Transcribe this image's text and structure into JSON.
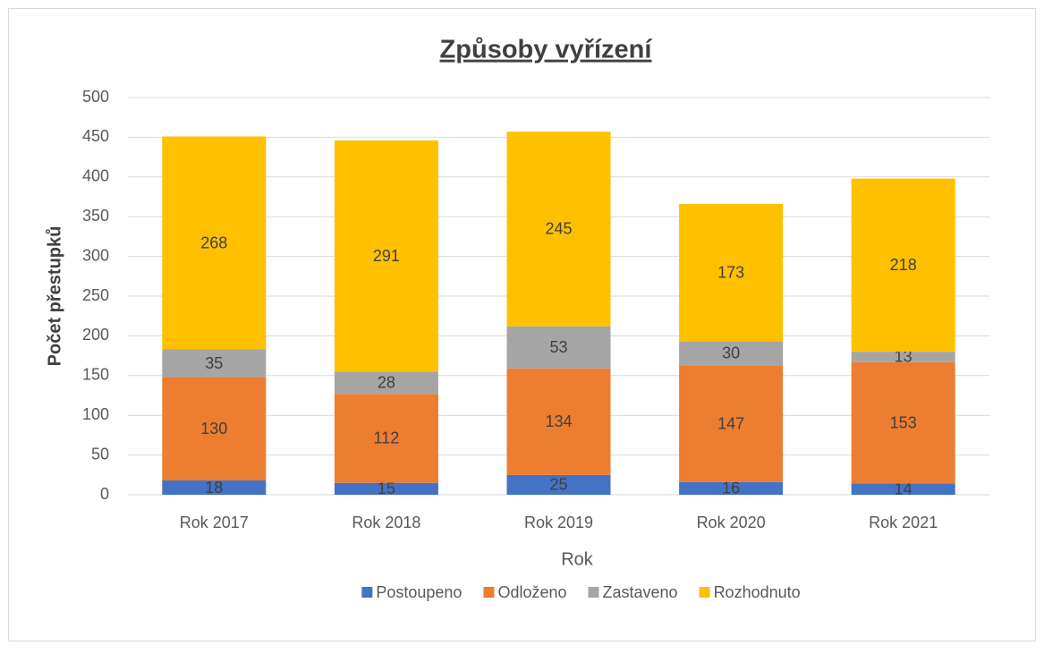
{
  "chart_data": {
    "type": "bar",
    "stacked": true,
    "title": "Způsoby vyřízení",
    "x_label": "Rok",
    "y_label": "Počet přestupků",
    "categories": [
      "Rok 2017",
      "Rok 2018",
      "Rok 2019",
      "Rok 2020",
      "Rok 2021"
    ],
    "series": [
      {
        "name": "Postoupeno",
        "color": "#4472c4",
        "values": [
          18,
          15,
          25,
          16,
          14
        ]
      },
      {
        "name": "Odloženo",
        "color": "#ed7d31",
        "values": [
          130,
          112,
          134,
          147,
          153
        ]
      },
      {
        "name": "Zastaveno",
        "color": "#a5a5a5",
        "values": [
          35,
          28,
          53,
          30,
          13
        ]
      },
      {
        "name": "Rozhodnuto",
        "color": "#ffc000",
        "values": [
          268,
          291,
          245,
          173,
          218
        ]
      }
    ],
    "ylim": [
      0,
      500
    ],
    "yticks": [
      0,
      50,
      100,
      150,
      200,
      250,
      300,
      350,
      400,
      450,
      500
    ],
    "grid": true,
    "legend": "bottom"
  }
}
